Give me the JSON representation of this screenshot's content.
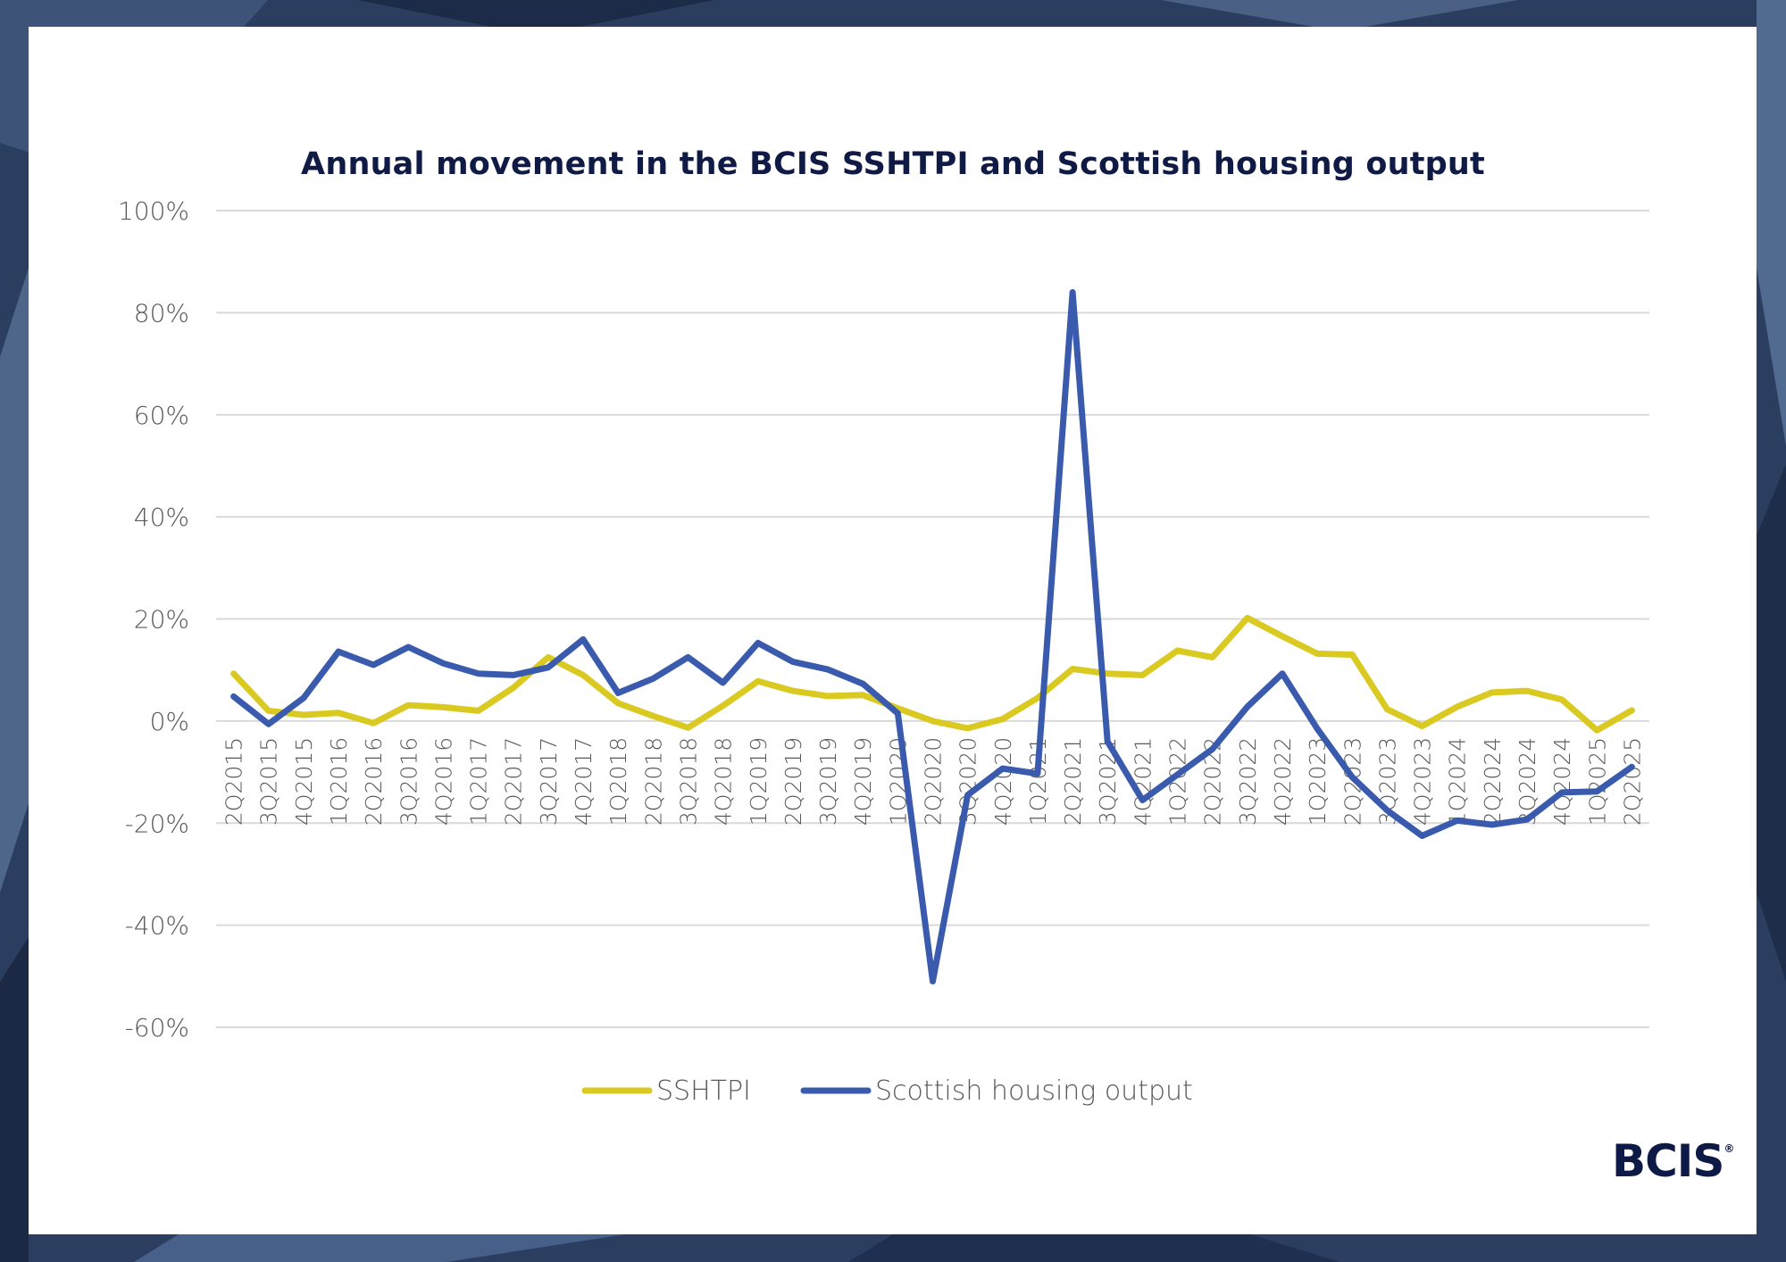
{
  "chart_data": {
    "type": "line",
    "title": "Annual movement in the BCIS SSHTPI and Scottish housing output",
    "xlabel": "",
    "ylabel": "",
    "ylim": [
      -60,
      100
    ],
    "yticks": [
      100,
      80,
      60,
      40,
      20,
      0,
      -20,
      -40,
      -60
    ],
    "ytick_labels": [
      "100%",
      "80%",
      "60%",
      "40%",
      "20%",
      "0%",
      "-20%",
      "-40%",
      "-60%"
    ],
    "grid": true,
    "legend_position": "bottom",
    "categories": [
      "2Q2015",
      "3Q2015",
      "4Q2015",
      "1Q2016",
      "2Q2016",
      "3Q2016",
      "4Q2016",
      "1Q2017",
      "2Q2017",
      "3Q2017",
      "4Q2017",
      "1Q2018",
      "2Q2018",
      "3Q2018",
      "4Q2018",
      "1Q2019",
      "2Q2019",
      "3Q2019",
      "4Q2019",
      "1Q2020",
      "2Q2020",
      "3Q2020",
      "4Q2020",
      "1Q2021",
      "2Q2021",
      "3Q2021",
      "4Q2021",
      "1Q2022",
      "2Q2022",
      "3Q2022",
      "4Q2022",
      "1Q2023",
      "2Q2023",
      "3Q2023",
      "4Q2023",
      "1Q2024",
      "2Q2024",
      "3Q2024",
      "4Q2024",
      "1Q2025",
      "2Q2025"
    ],
    "series": [
      {
        "name": "SSHTPI",
        "color": "#d9c921",
        "values": [
          9.3,
          2,
          1.2,
          1.6,
          -0.4,
          3.1,
          2.7,
          2,
          6.5,
          12.5,
          9,
          3.5,
          1,
          -1.3,
          3,
          7.8,
          5.9,
          4.9,
          5.1,
          2.5,
          0,
          -1.4,
          0.4,
          4.5,
          10.2,
          9.3,
          9,
          13.8,
          12.5,
          20.2,
          16.6,
          13.2,
          13,
          2.3,
          -1,
          2.8,
          5.6,
          5.9,
          4.2,
          -1.8,
          2.1
        ]
      },
      {
        "name": "Scottish housing output",
        "color": "#3a5bad",
        "values": [
          4.8,
          -0.6,
          4.5,
          13.6,
          11,
          14.5,
          11.3,
          9.3,
          9,
          10.5,
          16,
          5.5,
          8.3,
          12.5,
          7.5,
          15.3,
          11.6,
          10.1,
          7.3,
          1.5,
          -51,
          -14.5,
          -9.3,
          -10.3,
          84,
          -4,
          -15.5,
          -10.5,
          -5.5,
          2.8,
          9.3,
          -1.5,
          -11,
          -17.5,
          -22.5,
          -19.5,
          -20.3,
          -19.3,
          -14,
          -13.8,
          -9
        ]
      }
    ]
  },
  "logo": {
    "text": "BCIS",
    "mark": "®"
  }
}
